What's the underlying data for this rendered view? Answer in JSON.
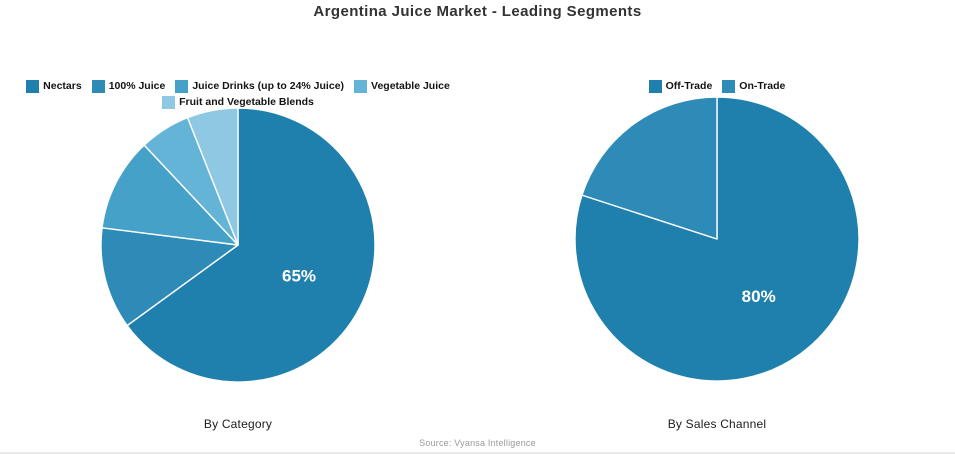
{
  "header": {
    "title": "Argentina Juice Market - Leading Segments"
  },
  "footer": {
    "source": "Source: Vyansa Intelligence"
  },
  "palette": {
    "shade1": "#2080ad",
    "shade2": "#2e8bb7",
    "shade3": "#45a1c8",
    "shade4": "#63b4d6",
    "shade5": "#8fc8e2",
    "slice_divider": "#ffffff",
    "pct_label_color": "#ffffff"
  },
  "chart_data": [
    {
      "type": "pie",
      "title": "By Category",
      "labels": [
        "Nectars",
        "100% Juice",
        "Juice Drinks (up to 24% Juice)",
        "Vegetable Juice",
        "Fruit and Vegetable Blends"
      ],
      "values": [
        65,
        12,
        11,
        6,
        6
      ],
      "colors": [
        "#2080ad",
        "#2e8bb7",
        "#45a1c8",
        "#63b4d6",
        "#8fc8e2"
      ],
      "slice_labels": [
        "65%",
        "",
        "",
        "",
        ""
      ],
      "start_angle": "top",
      "direction": "clockwise",
      "legend_position": "top"
    },
    {
      "type": "pie",
      "title": "By Sales Channel",
      "labels": [
        "Off-Trade",
        "On-Trade"
      ],
      "values": [
        80,
        20
      ],
      "colors": [
        "#2080ad",
        "#2e8bb7"
      ],
      "slice_labels": [
        "80%",
        ""
      ],
      "start_angle": "top",
      "direction": "clockwise",
      "legend_position": "top"
    }
  ]
}
